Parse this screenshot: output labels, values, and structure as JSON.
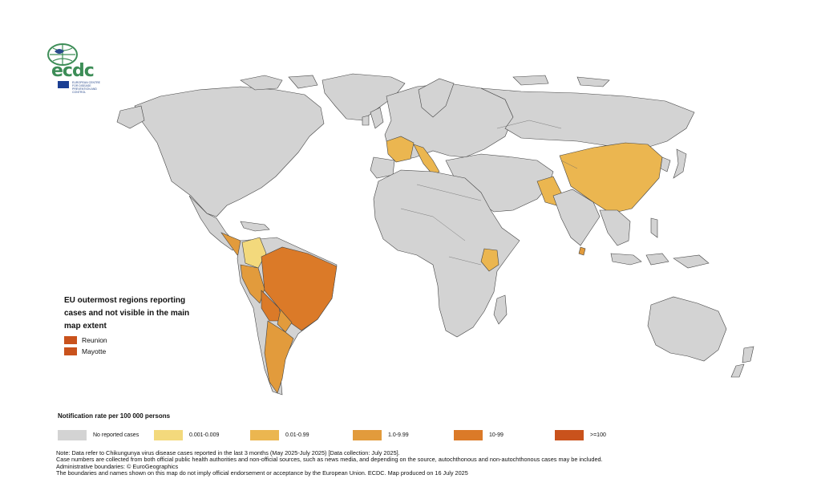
{
  "logo": {
    "text": "ecdc",
    "subtitle": "EUROPEAN CENTRE FOR DISEASE PREVENTION AND CONTROL",
    "icon": "globe-icon"
  },
  "outermost": {
    "title": "EU outermost regions reporting cases and not visible in the main map extent",
    "items": [
      {
        "label": "Reunion",
        "color": "#c9521c"
      },
      {
        "label": "Mayotte",
        "color": "#c9521c"
      }
    ]
  },
  "legend": {
    "title": "Notification rate per 100 000 persons",
    "classes": [
      {
        "label": "No reported cases",
        "color": "#d3d3d3"
      },
      {
        "label": "0.001-0.009",
        "color": "#f3d97c"
      },
      {
        "label": "0.01-0.99",
        "color": "#ebb650"
      },
      {
        "label": "1.0-9.99",
        "color": "#e29b3c"
      },
      {
        "label": "10-99",
        "color": "#db7a28"
      },
      {
        "label": ">=100",
        "color": "#c9521c"
      }
    ]
  },
  "notes": [
    "Note: Data refer to Chikungunya virus disease cases reported in the last 3 months (May 2025-July 2025) [Data collection: July 2025].",
    "Case numbers are collected from both official public health authorities and non-official sources, such as news media, and depending on the source, autochthonous and non-autochthonous cases may be included.",
    "Administrative boundaries: © EuroGeographics",
    "The boundaries and names shown on this map do not imply official endorsement or acceptance by the European Union. ECDC. Map produced on 16 July 2025"
  ]
}
